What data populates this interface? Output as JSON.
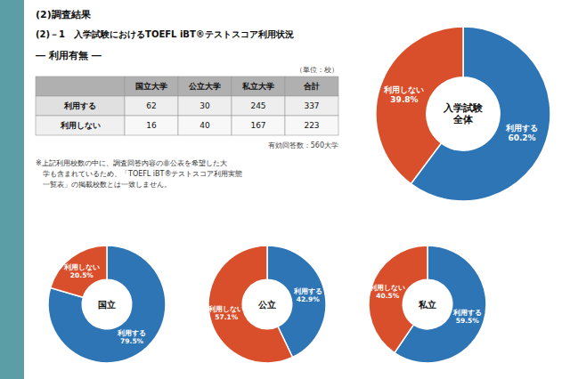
{
  "title": "(2)調査結果",
  "subtitle": "(2)－1　入学試験におけるTOEFL iBT®テストスコア利用状況",
  "chart_data": [
    {
      "type": "table",
      "title": "― 利用有無 ―",
      "categories": [
        "国立大学",
        "公立大学",
        "私立大学",
        "合計"
      ],
      "series": [
        {
          "name": "利用する",
          "values": [
            62,
            30,
            245,
            337
          ]
        },
        {
          "name": "利用しない",
          "values": [
            16,
            40,
            167,
            223
          ]
        }
      ],
      "annotations": [
        "（単位：校）",
        "有効回答数：560大学",
        "※上記利用校数の中に、調査回答内容の非公表を希望した大\n　学も含まれているため、「TOEFL iBT®テストスコア利用実態\n　一覧表」の掲載校数とは一致しません。"
      ]
    },
    {
      "type": "pie",
      "title": "入学試験\n全体",
      "categories": [
        "利用する",
        "利用しない"
      ],
      "values": [
        60.2,
        39.8
      ],
      "value_labels": [
        "60.2%",
        "39.8%"
      ],
      "colors": [
        "#2e75b6",
        "#d94f2b"
      ],
      "data_labels": true
    },
    {
      "type": "pie",
      "title": "国立",
      "categories": [
        "利用する",
        "利用しない"
      ],
      "values": [
        79.5,
        20.5
      ],
      "value_labels": [
        "79.5%",
        "20.5%"
      ],
      "colors": [
        "#2e75b6",
        "#d94f2b"
      ],
      "data_labels": true
    },
    {
      "type": "pie",
      "title": "公立",
      "categories": [
        "利用する",
        "利用しない"
      ],
      "values": [
        42.9,
        57.1
      ],
      "value_labels": [
        "42.9%",
        "57.1%"
      ],
      "colors": [
        "#2e75b6",
        "#d94f2b"
      ],
      "data_labels": true
    },
    {
      "type": "pie",
      "title": "私立",
      "categories": [
        "利用する",
        "利用しない"
      ],
      "values": [
        59.5,
        40.5
      ],
      "value_labels": [
        "59.5%",
        "40.5%"
      ],
      "colors": [
        "#2e75b6",
        "#d94f2b"
      ],
      "data_labels": true
    }
  ]
}
